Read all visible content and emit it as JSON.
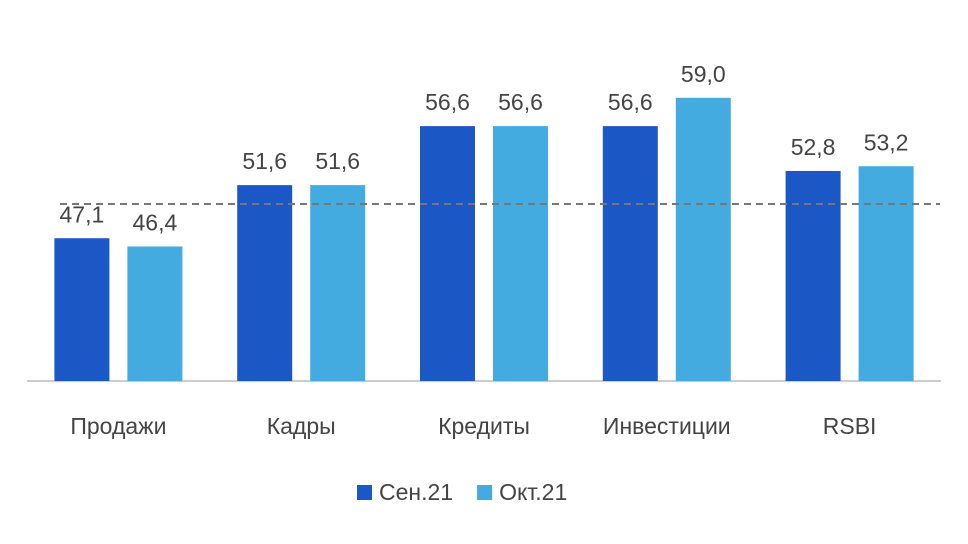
{
  "chart_data": {
    "type": "bar",
    "categories": [
      "Продажи",
      "Кадры",
      "Кредиты",
      "Инвестиции",
      "RSBI"
    ],
    "series": [
      {
        "name": "Сен.21",
        "color": "#1b58c6",
        "values": [
          47.1,
          51.6,
          56.6,
          56.6,
          52.8
        ],
        "value_labels": [
          "47,1",
          "51,6",
          "56,6",
          "56,6",
          "52,8"
        ]
      },
      {
        "name": "Окт.21",
        "color": "#44abe0",
        "values": [
          46.4,
          51.6,
          56.6,
          59.0,
          53.2
        ],
        "value_labels": [
          "46,4",
          "51,6",
          "56,6",
          "59,0",
          "53,2"
        ]
      }
    ],
    "ylim": [
      35,
      60
    ],
    "reference_line": 50,
    "legend": "bottom"
  }
}
